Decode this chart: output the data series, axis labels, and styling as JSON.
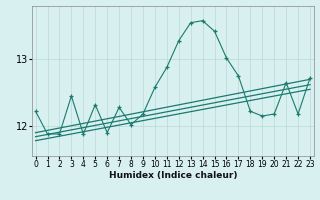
{
  "x": [
    0,
    1,
    2,
    3,
    4,
    5,
    6,
    7,
    8,
    9,
    10,
    11,
    12,
    13,
    14,
    15,
    16,
    17,
    18,
    19,
    20,
    21,
    22,
    23
  ],
  "y_main": [
    12.22,
    11.88,
    11.88,
    12.45,
    11.88,
    12.32,
    11.9,
    12.28,
    12.02,
    12.18,
    12.58,
    12.88,
    13.28,
    13.55,
    13.58,
    13.42,
    13.02,
    12.75,
    12.22,
    12.15,
    12.18,
    12.65,
    12.18,
    12.72
  ],
  "trend_lines": [
    {
      "x": [
        0,
        23
      ],
      "y": [
        11.78,
        12.55
      ]
    },
    {
      "x": [
        0,
        23
      ],
      "y": [
        11.84,
        12.62
      ]
    },
    {
      "x": [
        0,
        23
      ],
      "y": [
        11.9,
        12.7
      ]
    }
  ],
  "line_color": "#1a7a6e",
  "bg_color": "#d8f0f0",
  "grid_color": "#b8d8d8",
  "xlabel": "Humidex (Indice chaleur)",
  "yticks": [
    12,
    13
  ],
  "xticks": [
    0,
    1,
    2,
    3,
    4,
    5,
    6,
    7,
    8,
    9,
    10,
    11,
    12,
    13,
    14,
    15,
    16,
    17,
    18,
    19,
    20,
    21,
    22,
    23
  ],
  "ylim": [
    11.55,
    13.8
  ],
  "xlim": [
    -0.3,
    23.3
  ],
  "figsize": [
    3.2,
    2.0
  ],
  "dpi": 100
}
